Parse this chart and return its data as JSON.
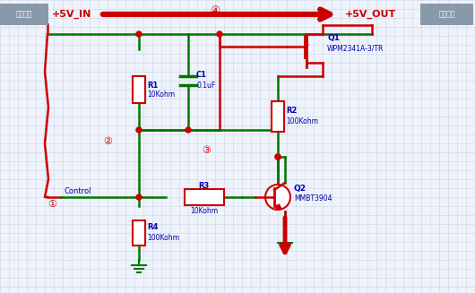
{
  "bg_color": "#eef2fa",
  "grid_color": "#ccd4e8",
  "red": "#cc0000",
  "green": "#007700",
  "blue_label": "#0000aa",
  "gray_banner": "#8899aa",
  "white": "#ffffff",
  "label_5v_in": "+5V_IN",
  "label_5v_out": "+5V_OUT",
  "label_power_in": "电源输入",
  "label_power_out": "电源输出",
  "label_control": "Control",
  "label_q1": "Q1",
  "label_q1_part": "WPM2341A-3/TR",
  "label_q2": "Q2",
  "label_q2_part": "MMBT3904",
  "label_c1": "C1",
  "label_c1_val": "0.1uF",
  "label_r1": "R1",
  "label_r1_val": "10Kohm",
  "label_r2": "R2",
  "label_r2_val": "100Kohm",
  "label_r3": "R3",
  "label_r3_val": "10Kohm",
  "label_r4": "R4",
  "label_r4_val": "100Kohm",
  "circle1": "①",
  "circle2": "②",
  "circle3": "③",
  "circle4": "④"
}
